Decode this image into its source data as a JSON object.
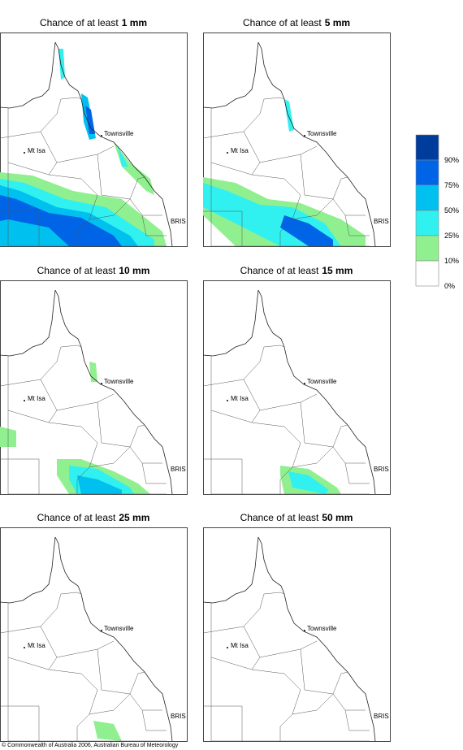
{
  "panels": [
    {
      "title": "Chance of at least",
      "amount": "1 mm"
    },
    {
      "title": "Chance of at least",
      "amount": "5 mm"
    },
    {
      "title": "Chance of at least",
      "amount": "10 mm"
    },
    {
      "title": "Chance of at least",
      "amount": "15 mm"
    },
    {
      "title": "Chance of at least",
      "amount": "25 mm"
    },
    {
      "title": "Chance of at least",
      "amount": "50 mm"
    }
  ],
  "places": [
    "Mt Isa",
    "Townsville",
    "BRIS"
  ],
  "legend": {
    "labels": [
      "90%",
      "75%",
      "50%",
      "25%",
      "10%",
      "0%"
    ],
    "colors": [
      "#003c9c",
      "#0064e6",
      "#00c0f0",
      "#30f0f0",
      "#90f090",
      "#ffffff"
    ]
  },
  "footer": "© Commonwealth of Australia 2006, Australian Bureau of Meteorology"
}
